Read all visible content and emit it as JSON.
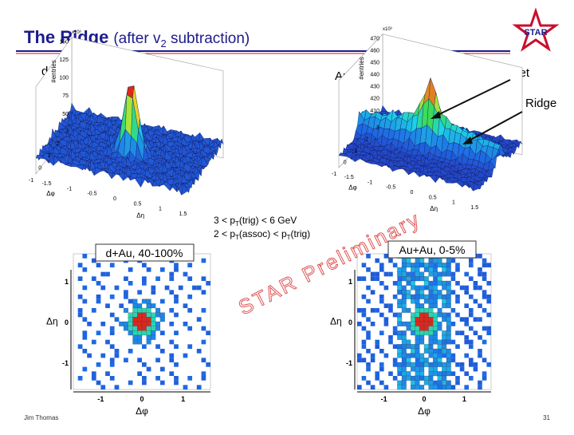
{
  "header": {
    "title": "The Ridge",
    "subtitle_before": "(after v",
    "subtitle_sub": "2",
    "subtitle_after": " subtraction)",
    "logo": "STAR"
  },
  "panels": {
    "dau_3d": {
      "label": "d+Au",
      "y_label": "#entries",
      "y_exponent": "x10³",
      "y_ticks": [
        "50",
        "75",
        "100",
        "125",
        "150"
      ],
      "eta_label": "Δη",
      "eta_ticks": [
        "-1.5",
        "-1",
        "-0.5",
        "0",
        "0.5",
        "1",
        "1.5"
      ],
      "phi_label": "Δφ",
      "phi_ticks": [
        "3",
        "2",
        "1",
        "0",
        "-1"
      ]
    },
    "auau_3d": {
      "label": "Au+Au",
      "y_label": "#entries",
      "y_exponent": "x10³",
      "y_ticks": [
        "410",
        "420",
        "430",
        "440",
        "450",
        "460",
        "470"
      ],
      "eta_label": "Δη",
      "eta_ticks": [
        "-1.5",
        "-1",
        "-0.5",
        "0",
        "0.5",
        "1",
        "1.5"
      ],
      "phi_label": "Δφ",
      "phi_ticks": [
        "3",
        "2",
        "1",
        "0",
        "-1"
      ],
      "jet_label": "Jet",
      "ridge_label": "Ridge"
    },
    "cuts": [
      {
        "before": "3  <  p",
        "sub": "T",
        "after": "(trig)  <  6 GeV"
      },
      {
        "before": "2  <  p",
        "sub": "T",
        "after": "(assoc)  <  p",
        "sub2": "T",
        "after2": "(trig)"
      }
    ],
    "dau_2d": {
      "label": "d+Au, 40-100%",
      "y_label": "Δη",
      "y_ticks": [
        "1",
        "0",
        "-1"
      ],
      "x_label": "Δφ",
      "x_ticks": [
        "-1",
        "0",
        "1"
      ]
    },
    "auau_2d": {
      "label": "Au+Au, 0-5%",
      "y_label": "Δη",
      "y_ticks": [
        "1",
        "0",
        "-1"
      ],
      "x_label": "Δφ",
      "x_ticks": [
        "-1",
        "0",
        "1"
      ]
    },
    "watermark": "STAR Preliminary"
  },
  "footer": {
    "author": "Jim Thomas",
    "page": "31"
  }
}
